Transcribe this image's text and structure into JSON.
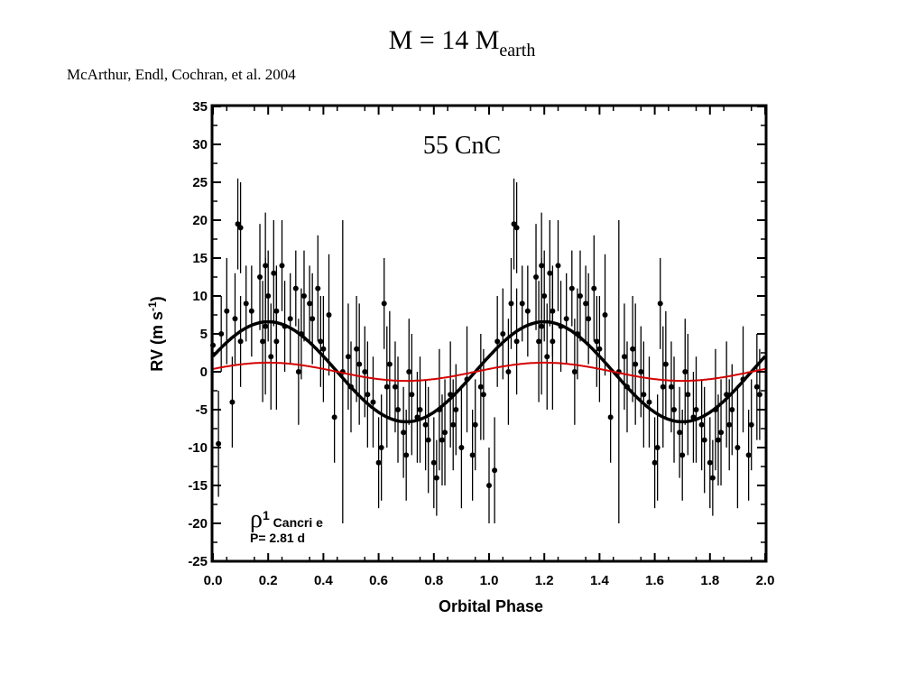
{
  "slide": {
    "title_main": "M = 14 M",
    "title_sub": "earth",
    "citation": "McArthur, Endl, Cochran, et al. 2004"
  },
  "chart_data": {
    "type": "scatter",
    "title": "55 CnC",
    "xlabel": "Orbital Phase",
    "ylabel_main": "RV (m s",
    "ylabel_sup": "-1",
    "ylabel_close": ")",
    "xlim": [
      0.0,
      2.0
    ],
    "ylim": [
      -25,
      35
    ],
    "xticks": [
      0.0,
      0.2,
      0.4,
      0.6,
      0.8,
      1.0,
      1.2,
      1.4,
      1.6,
      1.8,
      2.0
    ],
    "xtick_labels": [
      "0.0",
      "0.2",
      "0.4",
      "0.6",
      "0.8",
      "1.0",
      "1.2",
      "1.4",
      "1.6",
      "1.8",
      "2.0"
    ],
    "yticks": [
      35,
      30,
      25,
      20,
      15,
      10,
      5,
      0,
      -5,
      -10,
      -15,
      -20,
      -25
    ],
    "ytick_labels": [
      "35",
      "30",
      "25",
      "20",
      "15",
      "10",
      "5",
      "0",
      "-5",
      "-10",
      "-15",
      "-20",
      "-25"
    ],
    "grid": false,
    "annotation": {
      "symbol": "ρ",
      "symbol_sup": "1",
      "name": " Cancri e",
      "period": "P= 2.81 d"
    },
    "series": [
      {
        "kind": "points",
        "color": "#000000",
        "x": [
          0.0,
          0.02,
          0.03,
          0.05,
          0.07,
          0.08,
          0.09,
          0.1,
          0.1,
          0.12,
          0.14,
          0.17,
          0.18,
          0.19,
          0.19,
          0.2,
          0.21,
          0.22,
          0.23,
          0.23,
          0.25,
          0.26,
          0.28,
          0.3,
          0.31,
          0.32,
          0.33,
          0.35,
          0.36,
          0.38,
          0.39,
          0.4,
          0.42,
          0.44,
          0.47,
          0.49,
          0.5,
          0.52,
          0.53,
          0.55,
          0.56,
          0.58,
          0.6,
          0.61,
          0.62,
          0.63,
          0.64,
          0.66,
          0.67,
          0.69,
          0.7,
          0.71,
          0.72,
          0.74,
          0.75,
          0.77,
          0.78,
          0.8,
          0.81,
          0.82,
          0.83,
          0.84,
          0.86,
          0.87,
          0.88,
          0.9,
          0.92,
          0.94,
          0.95,
          0.97,
          0.98,
          1.0,
          1.02,
          1.03,
          1.05,
          1.07,
          1.08,
          1.09,
          1.1,
          1.1,
          1.12,
          1.14,
          1.17,
          1.18,
          1.19,
          1.19,
          1.2,
          1.21,
          1.22,
          1.23,
          1.23,
          1.25,
          1.26,
          1.28,
          1.3,
          1.31,
          1.32,
          1.33,
          1.35,
          1.36,
          1.38,
          1.39,
          1.4,
          1.42,
          1.44,
          1.47,
          1.49,
          1.5,
          1.52,
          1.53,
          1.55,
          1.56,
          1.58,
          1.6,
          1.61,
          1.62,
          1.63,
          1.64,
          1.66,
          1.67,
          1.69,
          1.7,
          1.71,
          1.72,
          1.74,
          1.75,
          1.77,
          1.78,
          1.8,
          1.81,
          1.82,
          1.83,
          1.84,
          1.86,
          1.87,
          1.88,
          1.9,
          1.92,
          1.94,
          1.95,
          1.97,
          1.98
        ],
        "y": [
          3.5,
          -9.5,
          5,
          8,
          -4,
          7,
          19.5,
          19,
          4,
          9,
          8,
          12.5,
          4,
          14,
          6,
          10,
          2,
          13,
          8,
          4,
          14,
          6,
          7,
          11,
          0,
          5,
          10,
          9,
          7,
          11,
          4,
          3,
          7.5,
          -6,
          0,
          2,
          -2,
          3,
          1,
          0,
          -3,
          -4,
          -12,
          -10,
          9,
          -2,
          1,
          -2,
          -5,
          -8,
          -11,
          0,
          -3,
          -6,
          -5,
          -7,
          -9,
          -12,
          -14,
          -5,
          -9,
          -8,
          -3,
          -7,
          -5,
          -10,
          -1,
          -11,
          -7,
          -2,
          -3,
          -15,
          -13,
          4,
          5,
          0,
          9,
          19.5,
          19,
          4,
          9,
          8,
          12.5,
          4,
          14,
          6,
          10,
          2,
          13,
          8,
          4,
          14,
          6,
          7,
          11,
          0,
          5,
          10,
          9,
          7,
          11,
          4,
          3,
          7.5,
          -6,
          0,
          2,
          -2,
          3,
          1,
          0,
          -3,
          -4,
          -12,
          -10,
          9,
          -2,
          1,
          -2,
          -5,
          -8,
          -11,
          0,
          -3,
          -6,
          -5,
          -7,
          -9,
          -12,
          -14,
          -5,
          -9,
          -8,
          -3,
          -7,
          -5,
          -10,
          -1,
          -11,
          -7,
          -2,
          -3
        ],
        "yerr": [
          6,
          7,
          5,
          7,
          6,
          6,
          6,
          6,
          6,
          5,
          6,
          7,
          8,
          7,
          9,
          6,
          7,
          7,
          6,
          9,
          6,
          6,
          6,
          5,
          7,
          6,
          6,
          5,
          6,
          7,
          6,
          7,
          8,
          6,
          20,
          7,
          6,
          7,
          8,
          6,
          7,
          6,
          6,
          7,
          6,
          8,
          7,
          6,
          7,
          6,
          6,
          7,
          8,
          6,
          7,
          6,
          7,
          6,
          5,
          8,
          6,
          7,
          7,
          6,
          6,
          8,
          7,
          6,
          6,
          7,
          6,
          5,
          7,
          6,
          6,
          7,
          6,
          6,
          6,
          7,
          5,
          6,
          7,
          8,
          7,
          9,
          6,
          7,
          7,
          6,
          9,
          6,
          6,
          6,
          5,
          7,
          6,
          6,
          5,
          6,
          7,
          6,
          7,
          8,
          6,
          20,
          7,
          6,
          7,
          8,
          6,
          7,
          6,
          6,
          7,
          6,
          8,
          7,
          6,
          7,
          6,
          6,
          7,
          8,
          6,
          7,
          6,
          7,
          6,
          5,
          8,
          6,
          7,
          7,
          6,
          6,
          8,
          7,
          6,
          6,
          7,
          6
        ]
      },
      {
        "kind": "curve",
        "color": "#000000",
        "amplitude": 6.6,
        "phase_of_max": 0.2
      },
      {
        "kind": "curve",
        "color": "#d40000",
        "amplitude": 1.2,
        "phase_of_max": 0.2
      }
    ]
  }
}
